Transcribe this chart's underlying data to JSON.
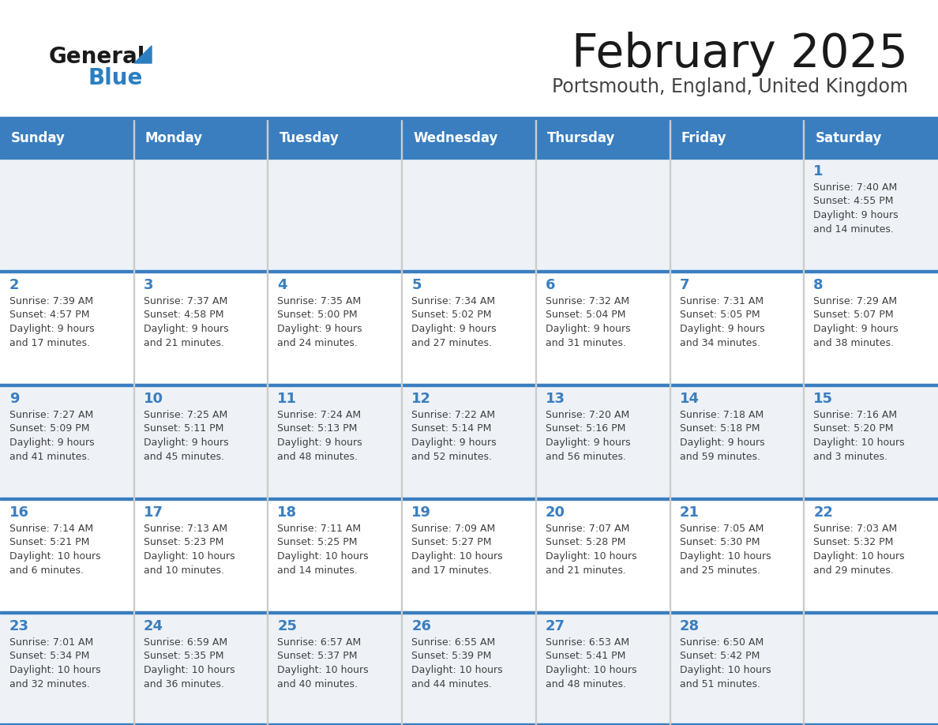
{
  "title": "February 2025",
  "subtitle": "Portsmouth, England, United Kingdom",
  "days_of_week": [
    "Sunday",
    "Monday",
    "Tuesday",
    "Wednesday",
    "Thursday",
    "Friday",
    "Saturday"
  ],
  "header_bg": "#3a7ebf",
  "header_text": "#ffffff",
  "row_bg_light": "#eef2f7",
  "row_bg_white": "#ffffff",
  "cell_border_color": "#3a7ebf",
  "day_number_color": "#3a7ebf",
  "info_text_color": "#404040",
  "title_color": "#1a1a1a",
  "subtitle_color": "#444444",
  "logo_general_color": "#1a1a1a",
  "logo_blue_color": "#2b7fc1",
  "calendar_data": [
    [
      null,
      null,
      null,
      null,
      null,
      null,
      {
        "day": 1,
        "sunrise": "7:40 AM",
        "sunset": "4:55 PM",
        "daylight": "9 hours and 14 minutes."
      }
    ],
    [
      {
        "day": 2,
        "sunrise": "7:39 AM",
        "sunset": "4:57 PM",
        "daylight": "9 hours and 17 minutes."
      },
      {
        "day": 3,
        "sunrise": "7:37 AM",
        "sunset": "4:58 PM",
        "daylight": "9 hours and 21 minutes."
      },
      {
        "day": 4,
        "sunrise": "7:35 AM",
        "sunset": "5:00 PM",
        "daylight": "9 hours and 24 minutes."
      },
      {
        "day": 5,
        "sunrise": "7:34 AM",
        "sunset": "5:02 PM",
        "daylight": "9 hours and 27 minutes."
      },
      {
        "day": 6,
        "sunrise": "7:32 AM",
        "sunset": "5:04 PM",
        "daylight": "9 hours and 31 minutes."
      },
      {
        "day": 7,
        "sunrise": "7:31 AM",
        "sunset": "5:05 PM",
        "daylight": "9 hours and 34 minutes."
      },
      {
        "day": 8,
        "sunrise": "7:29 AM",
        "sunset": "5:07 PM",
        "daylight": "9 hours and 38 minutes."
      }
    ],
    [
      {
        "day": 9,
        "sunrise": "7:27 AM",
        "sunset": "5:09 PM",
        "daylight": "9 hours and 41 minutes."
      },
      {
        "day": 10,
        "sunrise": "7:25 AM",
        "sunset": "5:11 PM",
        "daylight": "9 hours and 45 minutes."
      },
      {
        "day": 11,
        "sunrise": "7:24 AM",
        "sunset": "5:13 PM",
        "daylight": "9 hours and 48 minutes."
      },
      {
        "day": 12,
        "sunrise": "7:22 AM",
        "sunset": "5:14 PM",
        "daylight": "9 hours and 52 minutes."
      },
      {
        "day": 13,
        "sunrise": "7:20 AM",
        "sunset": "5:16 PM",
        "daylight": "9 hours and 56 minutes."
      },
      {
        "day": 14,
        "sunrise": "7:18 AM",
        "sunset": "5:18 PM",
        "daylight": "9 hours and 59 minutes."
      },
      {
        "day": 15,
        "sunrise": "7:16 AM",
        "sunset": "5:20 PM",
        "daylight": "10 hours and 3 minutes."
      }
    ],
    [
      {
        "day": 16,
        "sunrise": "7:14 AM",
        "sunset": "5:21 PM",
        "daylight": "10 hours and 6 minutes."
      },
      {
        "day": 17,
        "sunrise": "7:13 AM",
        "sunset": "5:23 PM",
        "daylight": "10 hours and 10 minutes."
      },
      {
        "day": 18,
        "sunrise": "7:11 AM",
        "sunset": "5:25 PM",
        "daylight": "10 hours and 14 minutes."
      },
      {
        "day": 19,
        "sunrise": "7:09 AM",
        "sunset": "5:27 PM",
        "daylight": "10 hours and 17 minutes."
      },
      {
        "day": 20,
        "sunrise": "7:07 AM",
        "sunset": "5:28 PM",
        "daylight": "10 hours and 21 minutes."
      },
      {
        "day": 21,
        "sunrise": "7:05 AM",
        "sunset": "5:30 PM",
        "daylight": "10 hours and 25 minutes."
      },
      {
        "day": 22,
        "sunrise": "7:03 AM",
        "sunset": "5:32 PM",
        "daylight": "10 hours and 29 minutes."
      }
    ],
    [
      {
        "day": 23,
        "sunrise": "7:01 AM",
        "sunset": "5:34 PM",
        "daylight": "10 hours and 32 minutes."
      },
      {
        "day": 24,
        "sunrise": "6:59 AM",
        "sunset": "5:35 PM",
        "daylight": "10 hours and 36 minutes."
      },
      {
        "day": 25,
        "sunrise": "6:57 AM",
        "sunset": "5:37 PM",
        "daylight": "10 hours and 40 minutes."
      },
      {
        "day": 26,
        "sunrise": "6:55 AM",
        "sunset": "5:39 PM",
        "daylight": "10 hours and 44 minutes."
      },
      {
        "day": 27,
        "sunrise": "6:53 AM",
        "sunset": "5:41 PM",
        "daylight": "10 hours and 48 minutes."
      },
      {
        "day": 28,
        "sunrise": "6:50 AM",
        "sunset": "5:42 PM",
        "daylight": "10 hours and 51 minutes."
      },
      null
    ]
  ],
  "figsize": [
    11.88,
    9.18
  ],
  "dpi": 100
}
